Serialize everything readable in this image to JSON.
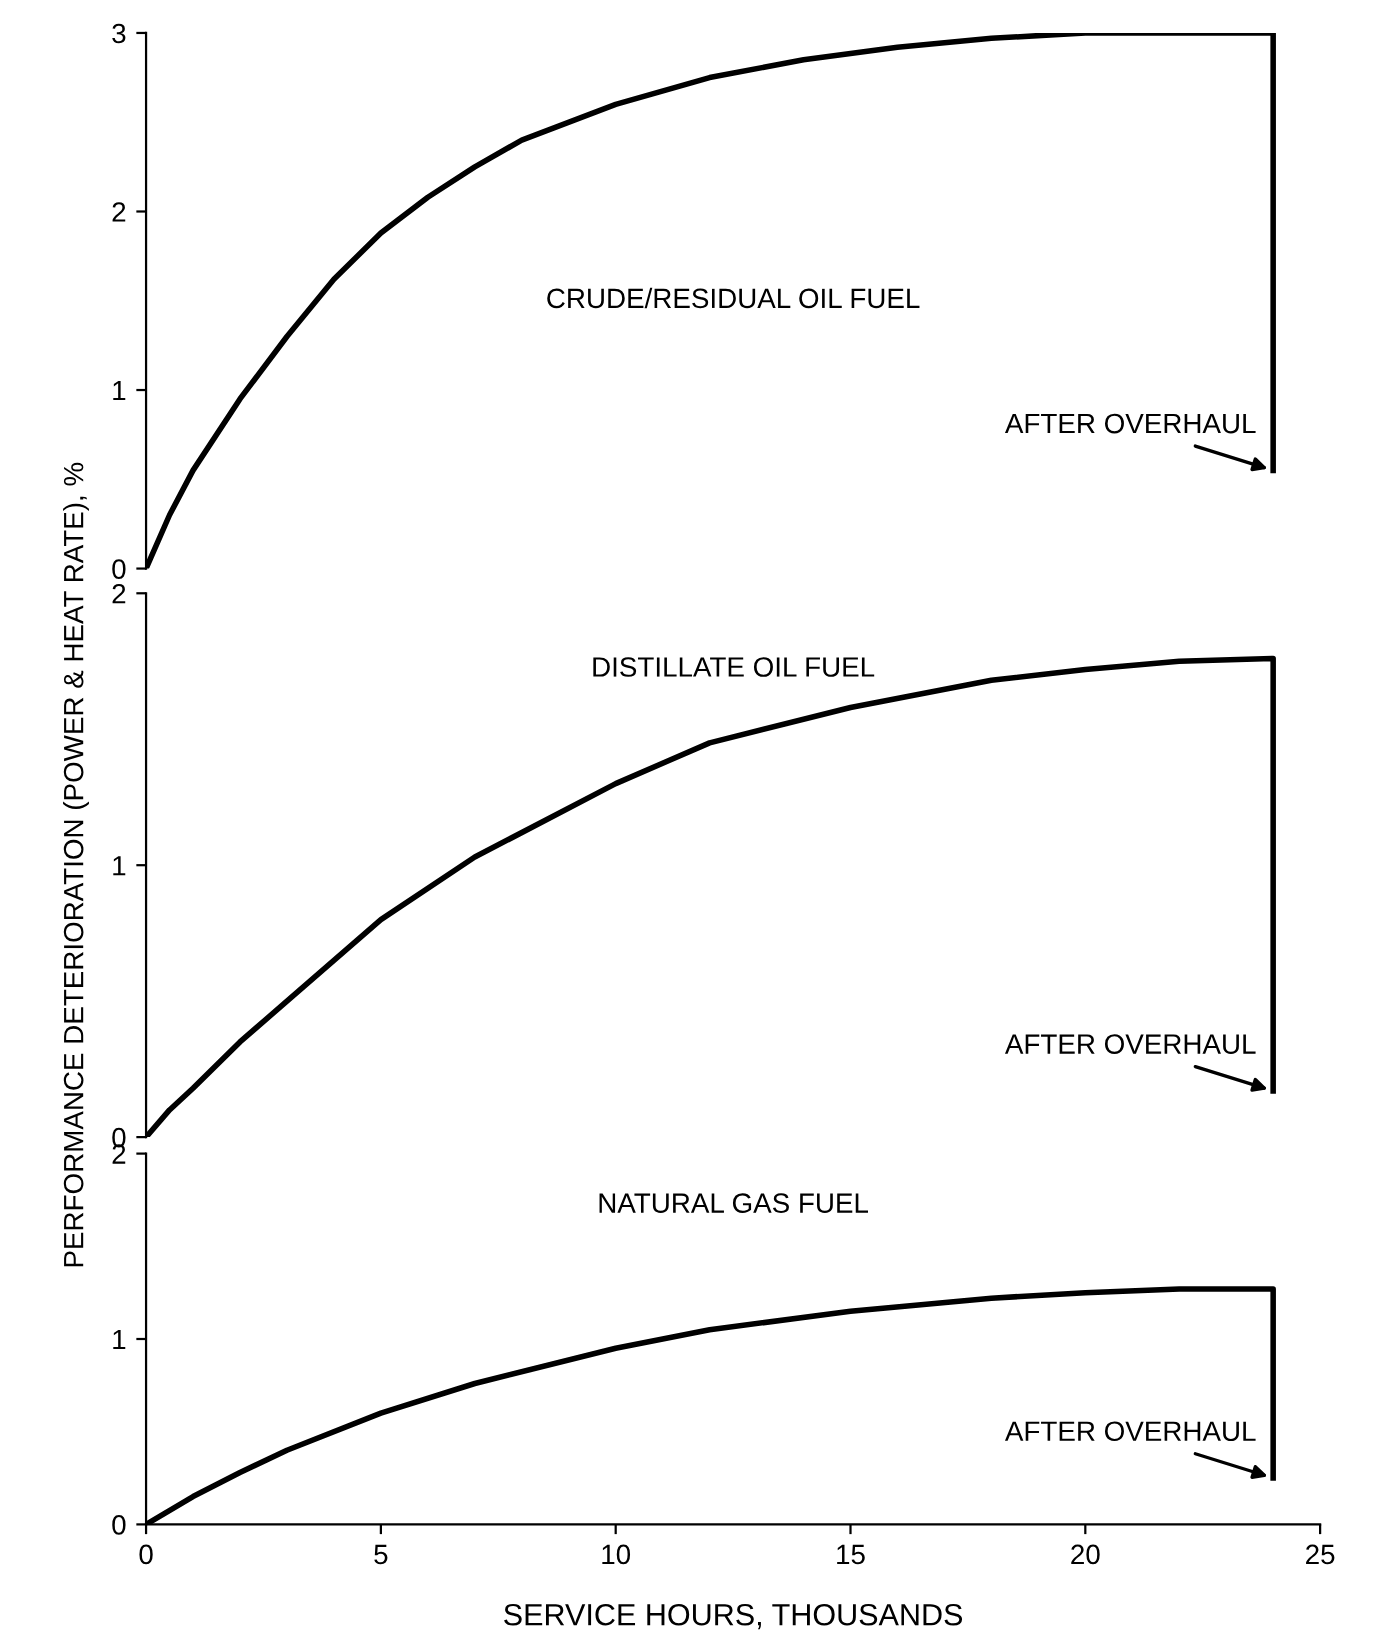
{
  "chart_data": [
    {
      "type": "line",
      "title": "CRUDE/RESIDUAL OIL FUEL",
      "x": [
        0,
        0.5,
        1,
        2,
        3,
        4,
        5,
        6,
        7,
        8,
        10,
        12,
        14,
        16,
        18,
        20,
        22,
        24,
        24
      ],
      "series": [
        {
          "color": "#000000",
          "values": [
            0,
            0.3,
            0.55,
            0.95,
            1.3,
            1.62,
            1.88,
            2.08,
            2.25,
            2.4,
            2.6,
            2.75,
            2.85,
            2.92,
            2.97,
            3.0,
            3.0,
            3.0,
            0.55
          ]
        }
      ],
      "xlim": [
        0,
        25
      ],
      "ylim": [
        0,
        3
      ],
      "xticks": [
        0,
        5,
        10,
        15,
        20,
        25
      ],
      "yticks": [
        0,
        1,
        2,
        3
      ],
      "tick_labels": "y",
      "grid": false,
      "legend": false,
      "annotations": [
        "AFTER OVERHAUL"
      ]
    },
    {
      "type": "line",
      "title": "DISTILLATE OIL FUEL",
      "ylabel": "PERFORMANCE DETERIORATION (POWER & HEAT RATE), %",
      "x": [
        0,
        0.5,
        1,
        2,
        3,
        5,
        7,
        10,
        12,
        15,
        18,
        20,
        22,
        24,
        24
      ],
      "series": [
        {
          "color": "#000000",
          "values": [
            0,
            0.1,
            0.18,
            0.35,
            0.5,
            0.8,
            1.03,
            1.3,
            1.45,
            1.58,
            1.68,
            1.72,
            1.75,
            1.76,
            0.17
          ]
        }
      ],
      "xlim": [
        0,
        25
      ],
      "ylim": [
        0,
        2
      ],
      "xticks": [
        0,
        5,
        10,
        15,
        20,
        25
      ],
      "yticks": [
        0,
        1,
        2
      ],
      "tick_labels": "y",
      "grid": false,
      "legend": false,
      "annotations": [
        "AFTER OVERHAUL"
      ]
    },
    {
      "type": "line",
      "title": "NATURAL GAS FUEL",
      "xlabel": "SERVICE HOURS, THOUSANDS",
      "x": [
        0,
        1,
        2,
        3,
        5,
        7,
        10,
        12,
        15,
        18,
        20,
        22,
        24,
        24
      ],
      "series": [
        {
          "color": "#000000",
          "values": [
            0,
            0.15,
            0.28,
            0.4,
            0.6,
            0.76,
            0.95,
            1.05,
            1.15,
            1.22,
            1.25,
            1.27,
            1.27,
            0.25
          ]
        }
      ],
      "xlim": [
        0,
        25
      ],
      "ylim": [
        0,
        2
      ],
      "xticks": [
        0,
        5,
        10,
        15,
        20,
        25
      ],
      "yticks": [
        0,
        1,
        2
      ],
      "grid": false,
      "legend": false,
      "annotations": [
        "AFTER OVERHAUL"
      ]
    }
  ]
}
